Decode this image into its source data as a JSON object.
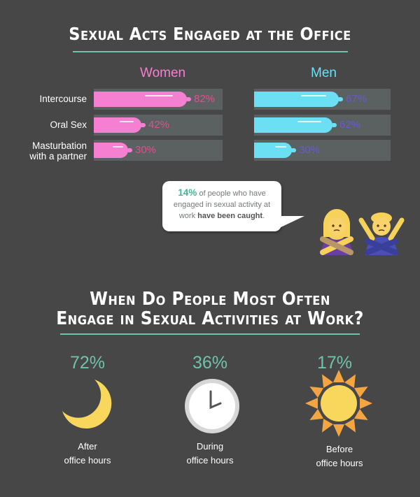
{
  "section1": {
    "title": "Sexual Acts Engaged at the Office"
  },
  "chart_data": [
    {
      "type": "bar",
      "title": "Sexual Acts Engaged at the Office",
      "categories": [
        "Intercourse",
        "Oral Sex",
        "Masturbation with a partner"
      ],
      "series": [
        {
          "name": "Women",
          "values": [
            82,
            42,
            30
          ],
          "color": "#f57fd1",
          "label_color": "#e0508f"
        },
        {
          "name": "Men",
          "values": [
            67,
            62,
            30
          ],
          "color": "#6be0f5",
          "label_color": "#6a5acd"
        }
      ],
      "ylim": [
        0,
        100
      ],
      "value_suffix": "%"
    },
    {
      "type": "table",
      "title": "When Do People Most Often Engage in Sexual Activities at Work?",
      "categories": [
        "After office hours",
        "During office hours",
        "Before office hours"
      ],
      "values": [
        72,
        36,
        17
      ],
      "value_suffix": "%"
    }
  ],
  "labels": {
    "cat0": "Intercourse",
    "cat1": "Oral Sex",
    "cat2_line1": "Masturbation",
    "cat2_line2": "with a partner",
    "women": "Women",
    "men": "Men"
  },
  "callout": {
    "highlight": "14%",
    "text1": " of people who have engaged in sexual activity at work ",
    "strong": "have been caught",
    "end": "."
  },
  "section2": {
    "title_line1": "When Do People Most Often",
    "title_line2": "Engage in Sexual Activities at Work?"
  },
  "times": [
    {
      "pct": "72%",
      "line1": "After",
      "line2": "office hours",
      "icon": "crescent-moon-icon"
    },
    {
      "pct": "36%",
      "line1": "During",
      "line2": "office hours",
      "icon": "clock-icon"
    },
    {
      "pct": "17%",
      "line1": "Before",
      "line2": "office hours",
      "icon": "sun-icon"
    }
  ],
  "colors": {
    "accent": "#6fc2ab",
    "background": "#474747",
    "track": "#5b6060"
  }
}
